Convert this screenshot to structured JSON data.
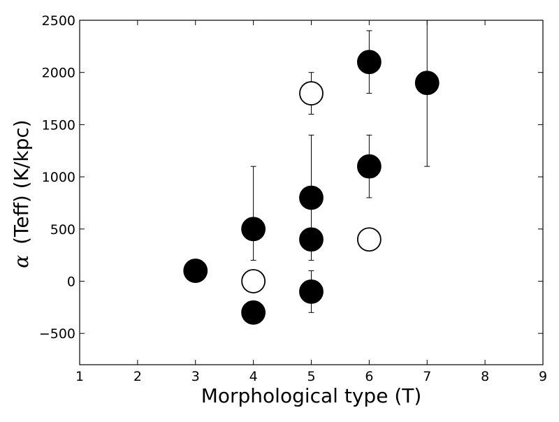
{
  "chart_data": {
    "type": "scatter",
    "xlabel": "Morphological type (T)",
    "ylabel_symbol": "α",
    "ylabel_text": "(Teff) (K/kpc)",
    "xlim": [
      1,
      9
    ],
    "ylim": [
      -800,
      2500
    ],
    "x_ticks": [
      1,
      2,
      3,
      4,
      5,
      6,
      7,
      8,
      9
    ],
    "y_ticks": [
      -500,
      0,
      500,
      1000,
      1500,
      2000,
      2500
    ],
    "x_tick_labels": [
      "1",
      "2",
      "3",
      "4",
      "5",
      "6",
      "7",
      "8",
      "9"
    ],
    "y_tick_labels": [
      "−500",
      "0",
      "500",
      "1000",
      "1500",
      "2000",
      "2500"
    ],
    "grid": false,
    "legend": "none",
    "marker_colors": {
      "filled": "#000000",
      "open": "#ffffff",
      "edge": "#000000"
    },
    "series": [
      {
        "marker": "filled-circle",
        "points": [
          {
            "x": 3,
            "y": 100
          },
          {
            "x": 4,
            "y": 500,
            "err_low": 200,
            "err_high": 1100
          },
          {
            "x": 4,
            "y": -300
          },
          {
            "x": 5,
            "y": 800,
            "err_low": 200,
            "err_high": 1400
          },
          {
            "x": 5,
            "y": 400
          },
          {
            "x": 5,
            "y": -100,
            "err_low": -300,
            "err_high": 100
          },
          {
            "x": 6,
            "y": 2100,
            "err_low": 1800,
            "err_high": 2400
          },
          {
            "x": 6,
            "y": 1100,
            "err_low": 800,
            "err_high": 1400
          },
          {
            "x": 7,
            "y": 1900,
            "err_low": 1100,
            "err_high": 2500
          }
        ]
      },
      {
        "marker": "open-circle",
        "points": [
          {
            "x": 4,
            "y": 0
          },
          {
            "x": 5,
            "y": 1800,
            "err_low": 1600,
            "err_high": 2000
          },
          {
            "x": 6,
            "y": 400
          }
        ]
      }
    ]
  }
}
